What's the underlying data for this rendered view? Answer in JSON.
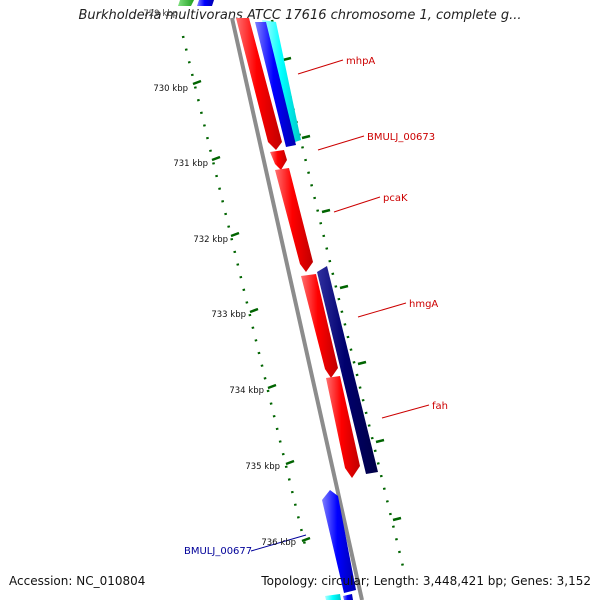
{
  "title": "Burkholderia multivorans ATCC 17616 chromosome 1, complete g...",
  "accession": "Accession: NC_010804",
  "summary": "Topology: circular; Length: 3,448,421 bp; Genes: 3,152",
  "colors": {
    "backbone": "#8c8c8c",
    "forward_gene": "#ff0000",
    "reverse_gene_dark": "#00006e",
    "reverse_gene_blue": "#0000ff",
    "cyan_gene": "#00ffff",
    "tick": "#006400",
    "label_red": "#cc0000",
    "label_blue": "#000099"
  },
  "ticks": [
    {
      "label": "730 kbp"
    },
    {
      "label": "731 kbp"
    },
    {
      "label": "732 kbp"
    },
    {
      "label": "733 kbp"
    },
    {
      "label": "734 kbp"
    },
    {
      "label": "735 kbp"
    },
    {
      "label": "736 kbp"
    }
  ],
  "top_tick_partial": "729 kbp",
  "gene_labels": [
    {
      "name": "mhpA",
      "color": "red"
    },
    {
      "name": "BMULJ_00673",
      "color": "red"
    },
    {
      "name": "pcaK",
      "color": "red"
    },
    {
      "name": "hmgA",
      "color": "red"
    },
    {
      "name": "fah",
      "color": "red"
    },
    {
      "name": "BMULJ_00677",
      "color": "blue"
    }
  ]
}
